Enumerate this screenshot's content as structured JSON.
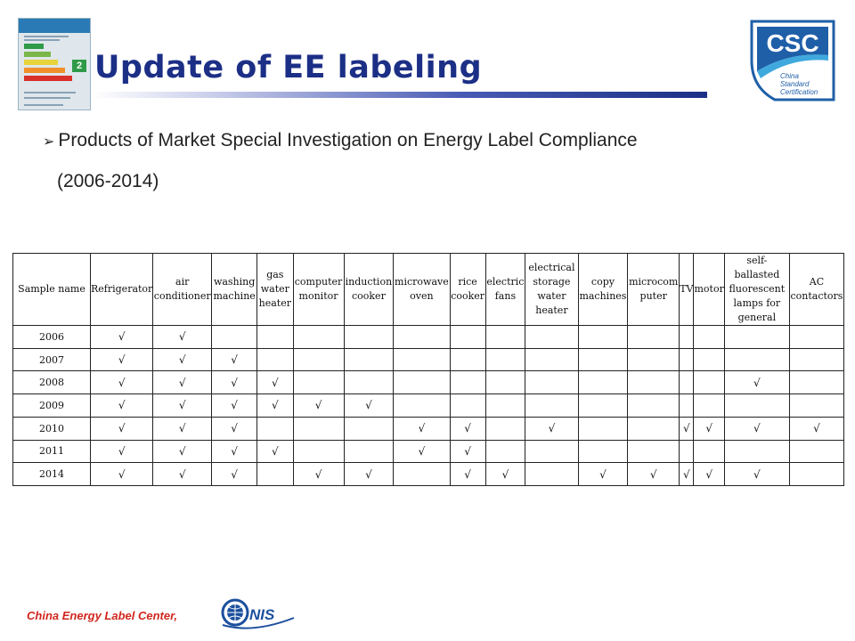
{
  "slide": {
    "title": "Update of EE labeling",
    "bullet_line1": "Products of Market Special Investigation on Energy Label Compliance",
    "bullet_line2": "(2006-2014)",
    "footer": "China Energy Label Center,"
  },
  "energy_label": {
    "grade": "2",
    "bar_colors": [
      "#2f9a47",
      "#7ab648",
      "#e6d43a",
      "#f0902c",
      "#d9302a"
    ]
  },
  "csc_logo": {
    "text": "CSC",
    "line1": "China",
    "line2": "Standard",
    "line3": "Certification",
    "color": "#1f5fa8",
    "accent": "#3fa9dd"
  },
  "cnis_logo": {
    "text": "NIS",
    "color": "#1c4f9e"
  },
  "table": {
    "headers": [
      "Sample name",
      "Refrigerator",
      "air conditioner",
      "washing machine",
      "gas water heater",
      "computer monitor",
      "induction cooker",
      "microwave oven",
      "rice cooker",
      "electric fans",
      "electrical storage water heater",
      "copy machines",
      "microcom puter",
      "TV",
      "motor",
      "self-ballasted fluorescent lamps for general",
      "AC contactors"
    ],
    "check_mark": "√",
    "rows": [
      {
        "year": "2006",
        "cells": [
          1,
          1,
          0,
          0,
          0,
          0,
          0,
          0,
          0,
          0,
          0,
          0,
          0,
          0,
          0,
          0
        ]
      },
      {
        "year": "2007",
        "cells": [
          1,
          1,
          1,
          0,
          0,
          0,
          0,
          0,
          0,
          0,
          0,
          0,
          0,
          0,
          0,
          0
        ]
      },
      {
        "year": "2008",
        "cells": [
          1,
          1,
          1,
          1,
          0,
          0,
          0,
          0,
          0,
          0,
          0,
          0,
          0,
          0,
          1,
          0
        ]
      },
      {
        "year": "2009",
        "cells": [
          1,
          1,
          1,
          1,
          1,
          1,
          0,
          0,
          0,
          0,
          0,
          0,
          0,
          0,
          0,
          0
        ]
      },
      {
        "year": "2010",
        "cells": [
          1,
          1,
          1,
          0,
          0,
          0,
          1,
          1,
          0,
          1,
          0,
          0,
          1,
          1,
          1,
          1
        ]
      },
      {
        "year": "2011",
        "cells": [
          1,
          1,
          1,
          1,
          0,
          0,
          1,
          1,
          0,
          0,
          0,
          0,
          0,
          0,
          0,
          0
        ]
      },
      {
        "year": "2014",
        "cells": [
          1,
          1,
          1,
          0,
          1,
          1,
          0,
          1,
          1,
          0,
          1,
          1,
          1,
          1,
          1,
          0
        ]
      }
    ]
  }
}
